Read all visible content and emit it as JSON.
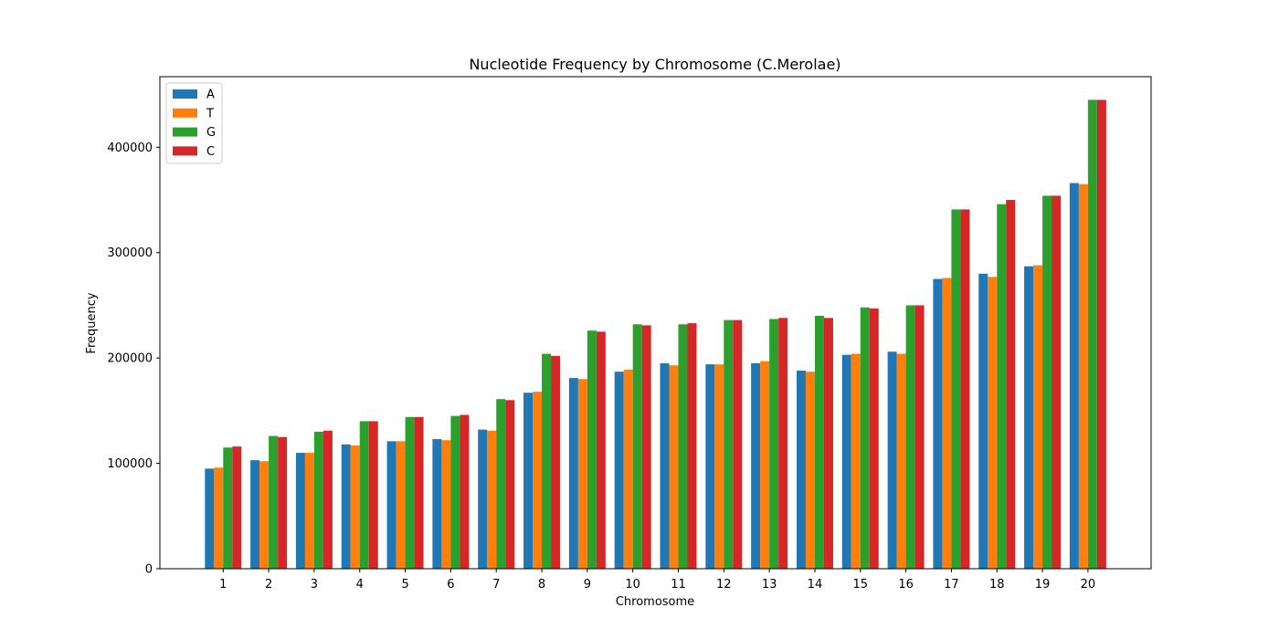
{
  "chart_data": {
    "type": "bar",
    "title": "Nucleotide Frequency by Chromosome (C.Merolae)",
    "xlabel": "Chromosome",
    "ylabel": "Frequency",
    "categories": [
      "1",
      "2",
      "3",
      "4",
      "5",
      "6",
      "7",
      "8",
      "9",
      "10",
      "11",
      "12",
      "13",
      "14",
      "15",
      "16",
      "17",
      "18",
      "19",
      "20"
    ],
    "ylim": [
      0,
      467000
    ],
    "yticks": [
      0,
      100000,
      200000,
      300000,
      400000
    ],
    "grid": false,
    "legend_position": "top-left",
    "series": [
      {
        "name": "A",
        "color": "#1f77b4",
        "values": [
          95000,
          103000,
          110000,
          118000,
          121000,
          123000,
          132000,
          167000,
          181000,
          187000,
          195000,
          194000,
          195000,
          188000,
          203000,
          206000,
          275000,
          280000,
          287000,
          366000
        ]
      },
      {
        "name": "T",
        "color": "#ff7f0e",
        "values": [
          96000,
          102000,
          110000,
          117000,
          121000,
          122000,
          131000,
          168000,
          180000,
          189000,
          193000,
          194000,
          197000,
          187000,
          204000,
          204000,
          276000,
          277000,
          288000,
          365000
        ]
      },
      {
        "name": "G",
        "color": "#2ca02c",
        "values": [
          115000,
          126000,
          130000,
          140000,
          144000,
          145000,
          161000,
          204000,
          226000,
          232000,
          232000,
          236000,
          237000,
          240000,
          248000,
          250000,
          341000,
          346000,
          354000,
          445000
        ]
      },
      {
        "name": "C",
        "color": "#d62728",
        "values": [
          116000,
          125000,
          131000,
          140000,
          144000,
          146000,
          160000,
          202000,
          225000,
          231000,
          233000,
          236000,
          238000,
          238000,
          247000,
          250000,
          341000,
          350000,
          354000,
          445000
        ]
      }
    ]
  }
}
